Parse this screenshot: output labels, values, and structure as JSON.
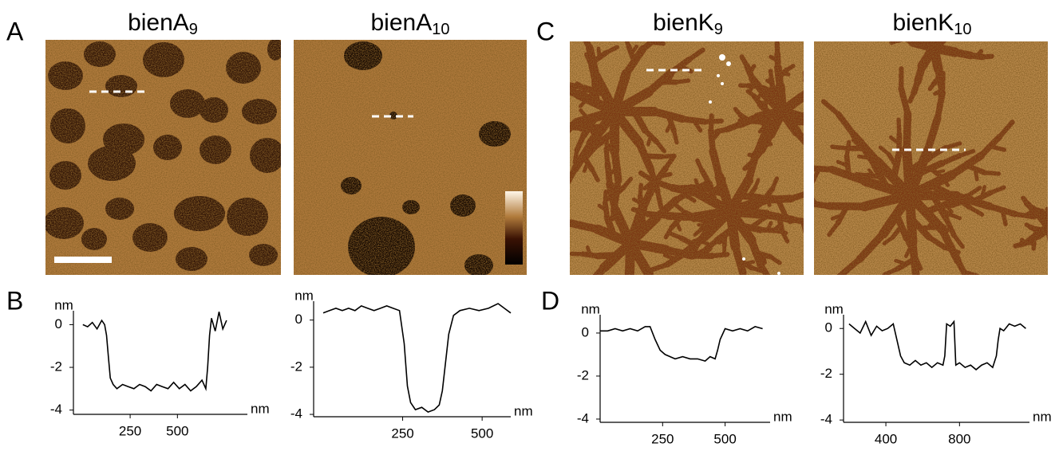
{
  "panel_labels": [
    "A",
    "B",
    "C",
    "D"
  ],
  "images": [
    {
      "title": "bienA",
      "subscript": "9"
    },
    {
      "title": "bienA",
      "subscript": "10"
    },
    {
      "title": "bienK",
      "subscript": "9"
    },
    {
      "title": "bienK",
      "subscript": "10"
    }
  ],
  "chart_data": [
    {
      "type": "line",
      "y_label": "nm",
      "x_label": "nm",
      "color": "#000000",
      "xlim": [
        -50,
        870
      ],
      "ylim": [
        -4.2,
        0.65
      ],
      "xticks": [
        250,
        500
      ],
      "yticks": [
        0,
        -2,
        -4
      ],
      "x": [
        0,
        25,
        50,
        75,
        100,
        115,
        125,
        135,
        145,
        160,
        180,
        210,
        240,
        270,
        300,
        330,
        360,
        390,
        420,
        450,
        480,
        510,
        540,
        570,
        600,
        630,
        650,
        660,
        670,
        680,
        700,
        720,
        740,
        760
      ],
      "values": [
        0,
        -0.1,
        0.1,
        -0.2,
        0.2,
        0,
        -0.5,
        -1.5,
        -2.5,
        -2.8,
        -3,
        -2.8,
        -2.9,
        -3,
        -2.8,
        -2.9,
        -3.1,
        -2.8,
        -2.9,
        -3,
        -2.7,
        -3,
        -2.8,
        -3.1,
        -2.9,
        -2.6,
        -3,
        -2,
        -0.5,
        0.3,
        -0.3,
        0.6,
        -0.2,
        0.2
      ]
    },
    {
      "type": "line",
      "y_label": "nm",
      "x_label": "nm",
      "color": "#000000",
      "xlim": [
        -30,
        590
      ],
      "ylim": [
        -4.1,
        0.8
      ],
      "xticks": [
        250,
        500
      ],
      "yticks": [
        0,
        -2,
        -4
      ],
      "x": [
        0,
        20,
        40,
        60,
        80,
        100,
        120,
        140,
        160,
        180,
        200,
        220,
        240,
        255,
        265,
        275,
        290,
        310,
        330,
        350,
        365,
        375,
        385,
        395,
        410,
        430,
        460,
        490,
        520,
        550,
        570,
        590
      ],
      "values": [
        0.3,
        0.4,
        0.5,
        0.4,
        0.5,
        0.4,
        0.6,
        0.5,
        0.4,
        0.5,
        0.6,
        0.5,
        0.4,
        -1,
        -2.8,
        -3.5,
        -3.8,
        -3.7,
        -3.9,
        -3.8,
        -3.6,
        -3,
        -1.8,
        -0.6,
        0.2,
        0.4,
        0.5,
        0.4,
        0.5,
        0.7,
        0.5,
        0.3
      ]
    },
    {
      "type": "line",
      "y_label": "nm",
      "x_label": "nm",
      "color": "#000000",
      "xlim": [
        0,
        680
      ],
      "ylim": [
        -4.15,
        0.85
      ],
      "xticks": [
        250,
        500
      ],
      "yticks": [
        0,
        -2,
        -4
      ],
      "x": [
        0,
        30,
        60,
        90,
        120,
        150,
        180,
        200,
        220,
        240,
        260,
        280,
        300,
        330,
        360,
        390,
        420,
        440,
        460,
        470,
        480,
        500,
        530,
        560,
        590,
        620,
        650
      ],
      "values": [
        0.1,
        0.1,
        0.2,
        0.1,
        0.2,
        0.1,
        0.3,
        0.3,
        -0.3,
        -0.8,
        -1,
        -1.1,
        -1.2,
        -1.1,
        -1.2,
        -1.2,
        -1.3,
        -1.1,
        -1.2,
        -0.8,
        -0.3,
        0.2,
        0.1,
        0.2,
        0.1,
        0.3,
        0.2
      ]
    },
    {
      "type": "line",
      "y_label": "nm",
      "x_label": "nm",
      "color": "#000000",
      "xlim": [
        170,
        1180
      ],
      "ylim": [
        -4.1,
        0.6
      ],
      "xticks": [
        400,
        800
      ],
      "yticks": [
        0,
        -2,
        -4
      ],
      "x": [
        200,
        230,
        260,
        290,
        320,
        350,
        380,
        410,
        440,
        460,
        480,
        500,
        530,
        560,
        590,
        620,
        650,
        680,
        710,
        720,
        730,
        750,
        770,
        780,
        800,
        830,
        860,
        890,
        920,
        950,
        980,
        1000,
        1010,
        1020,
        1040,
        1070,
        1100,
        1130,
        1160
      ],
      "values": [
        0.2,
        0,
        -0.2,
        0.3,
        -0.3,
        0.1,
        -0.1,
        0,
        0.2,
        -0.5,
        -1.2,
        -1.5,
        -1.6,
        -1.4,
        -1.6,
        -1.5,
        -1.7,
        -1.5,
        -1.6,
        -1.2,
        0.2,
        0.1,
        0.3,
        -1.6,
        -1.5,
        -1.7,
        -1.6,
        -1.8,
        -1.6,
        -1.5,
        -1.7,
        -1.2,
        -0.5,
        0,
        -0.1,
        0.2,
        0.1,
        0.2,
        0
      ]
    }
  ]
}
